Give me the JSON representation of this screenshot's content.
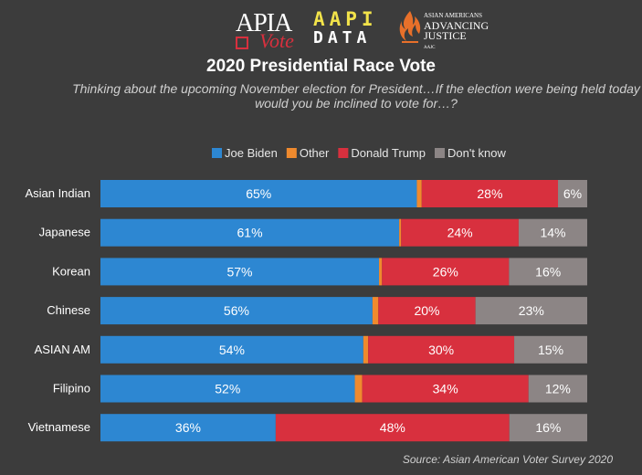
{
  "logos": {
    "apia": {
      "main": "APIA",
      "sub": "Vote"
    },
    "aapi": {
      "line1": "AAPI",
      "line2": "DATA"
    },
    "aaj": {
      "line1": "ASIAN AMERICANS",
      "line2": "ADVANCING",
      "line3": "JUSTICE",
      "line4": "AAJC"
    }
  },
  "chart_data": {
    "type": "bar",
    "orientation": "horizontal",
    "stacked": true,
    "title": "2020 Presidential Race Vote",
    "subtitle": "Thinking about the upcoming November election for President…If the election were being held today would you be inclined to vote for…?",
    "source": "Source: Asian American Voter Survey 2020",
    "legend_position": "top",
    "categories": [
      "Asian Indian",
      "Japanese",
      "Korean",
      "Chinese",
      "ASIAN AM",
      "Filipino",
      "Vietnamese"
    ],
    "series": [
      {
        "name": "Joe Biden",
        "color": "#2d87d2",
        "values": [
          65,
          61,
          57,
          56,
          54,
          52,
          36
        ],
        "labels": [
          "65%",
          "61%",
          "57%",
          "56%",
          "54%",
          "52%",
          "36%"
        ]
      },
      {
        "name": "Other",
        "color": "#ef8a2e",
        "values": [
          1,
          0.4,
          0.6,
          1.2,
          1,
          1.5,
          0
        ],
        "labels": [
          "",
          "",
          "",
          "",
          "",
          "",
          ""
        ]
      },
      {
        "name": "Donald Trump",
        "color": "#d8303e",
        "values": [
          28,
          24,
          26,
          20,
          30,
          34,
          48
        ],
        "labels": [
          "28%",
          "24%",
          "26%",
          "20%",
          "30%",
          "34%",
          "48%"
        ]
      },
      {
        "name": "Don't know",
        "color": "#8c8585",
        "values": [
          6,
          14,
          16,
          23,
          15,
          12,
          16
        ],
        "labels": [
          "6%",
          "14%",
          "16%",
          "23%",
          "15%",
          "12%",
          "16%"
        ]
      }
    ],
    "xlim": [
      0,
      100
    ]
  }
}
